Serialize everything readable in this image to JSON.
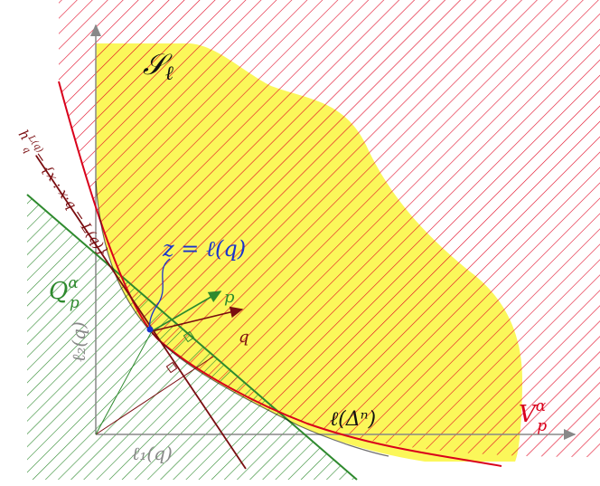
{
  "labels": {
    "set_name": "𝒮",
    "set_sub": "ℓ",
    "point_z": "z = ℓ(q)",
    "vec_p": "p",
    "vec_q": "q",
    "Q_base": "Q",
    "Q_sup": "α",
    "Q_sub": "p",
    "V_base": "V",
    "V_sup": "α",
    "V_sub": "p",
    "simplex_image": "ℓ(Δⁿ)",
    "hyperplane": "h",
    "hyperplane_sup": "L(q)",
    "hyperplane_sub": "q",
    "hyperplane_def": "= {x : x·q = L(q)}",
    "axis_y_label": "ℓ₂(q)",
    "axis_x_label": "ℓ₁(q)"
  },
  "colors": {
    "yellow": "#fbf75a",
    "red": "#d9001b",
    "green": "#2e8a2e",
    "darkred": "#7a0d10",
    "blue": "#1a33cc",
    "axis": "#888888"
  }
}
